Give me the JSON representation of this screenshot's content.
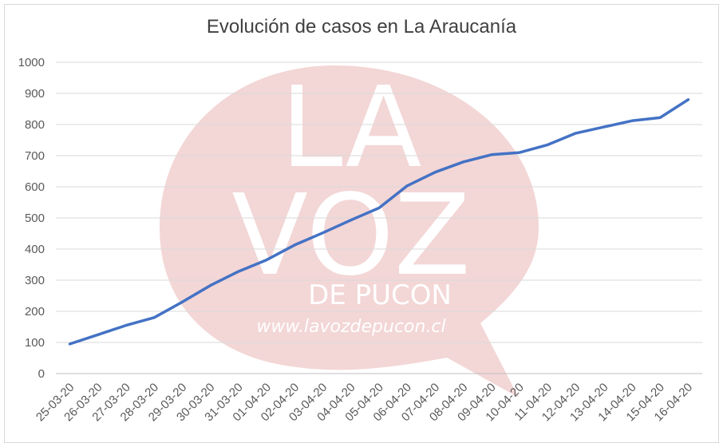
{
  "watermark": {
    "line1": "LA",
    "line2": "VOZ",
    "line3": "DE PUCON",
    "url": "www.lavozdepucon.cl",
    "bubble_color": "#f3d6d6"
  },
  "chart_data": {
    "type": "line",
    "title": "Evolución de casos en La Araucanía",
    "xlabel": "",
    "ylabel": "",
    "ylim": [
      0,
      1000
    ],
    "yticks": [
      0,
      100,
      200,
      300,
      400,
      500,
      600,
      700,
      800,
      900,
      1000
    ],
    "grid": true,
    "line_color": "#4472c4",
    "categories": [
      "25-03-20",
      "26-03-20",
      "27-03-20",
      "28-03-20",
      "29-03-20",
      "30-03-20",
      "31-03-20",
      "01-04-20",
      "02-04-20",
      "03-04-20",
      "04-04-20",
      "05-04-20",
      "06-04-20",
      "07-04-20",
      "08-04-20",
      "09-04-20",
      "10-04-20",
      "11-04-20",
      "12-04-20",
      "13-04-20",
      "14-04-20",
      "15-04-20",
      "16-04-20"
    ],
    "series": [
      {
        "values": [
          95,
          125,
          155,
          180,
          230,
          283,
          328,
          365,
          413,
          452,
          493,
          532,
          603,
          647,
          680,
          703,
          710,
          735,
          772,
          792,
          812,
          822,
          880
        ]
      }
    ]
  }
}
